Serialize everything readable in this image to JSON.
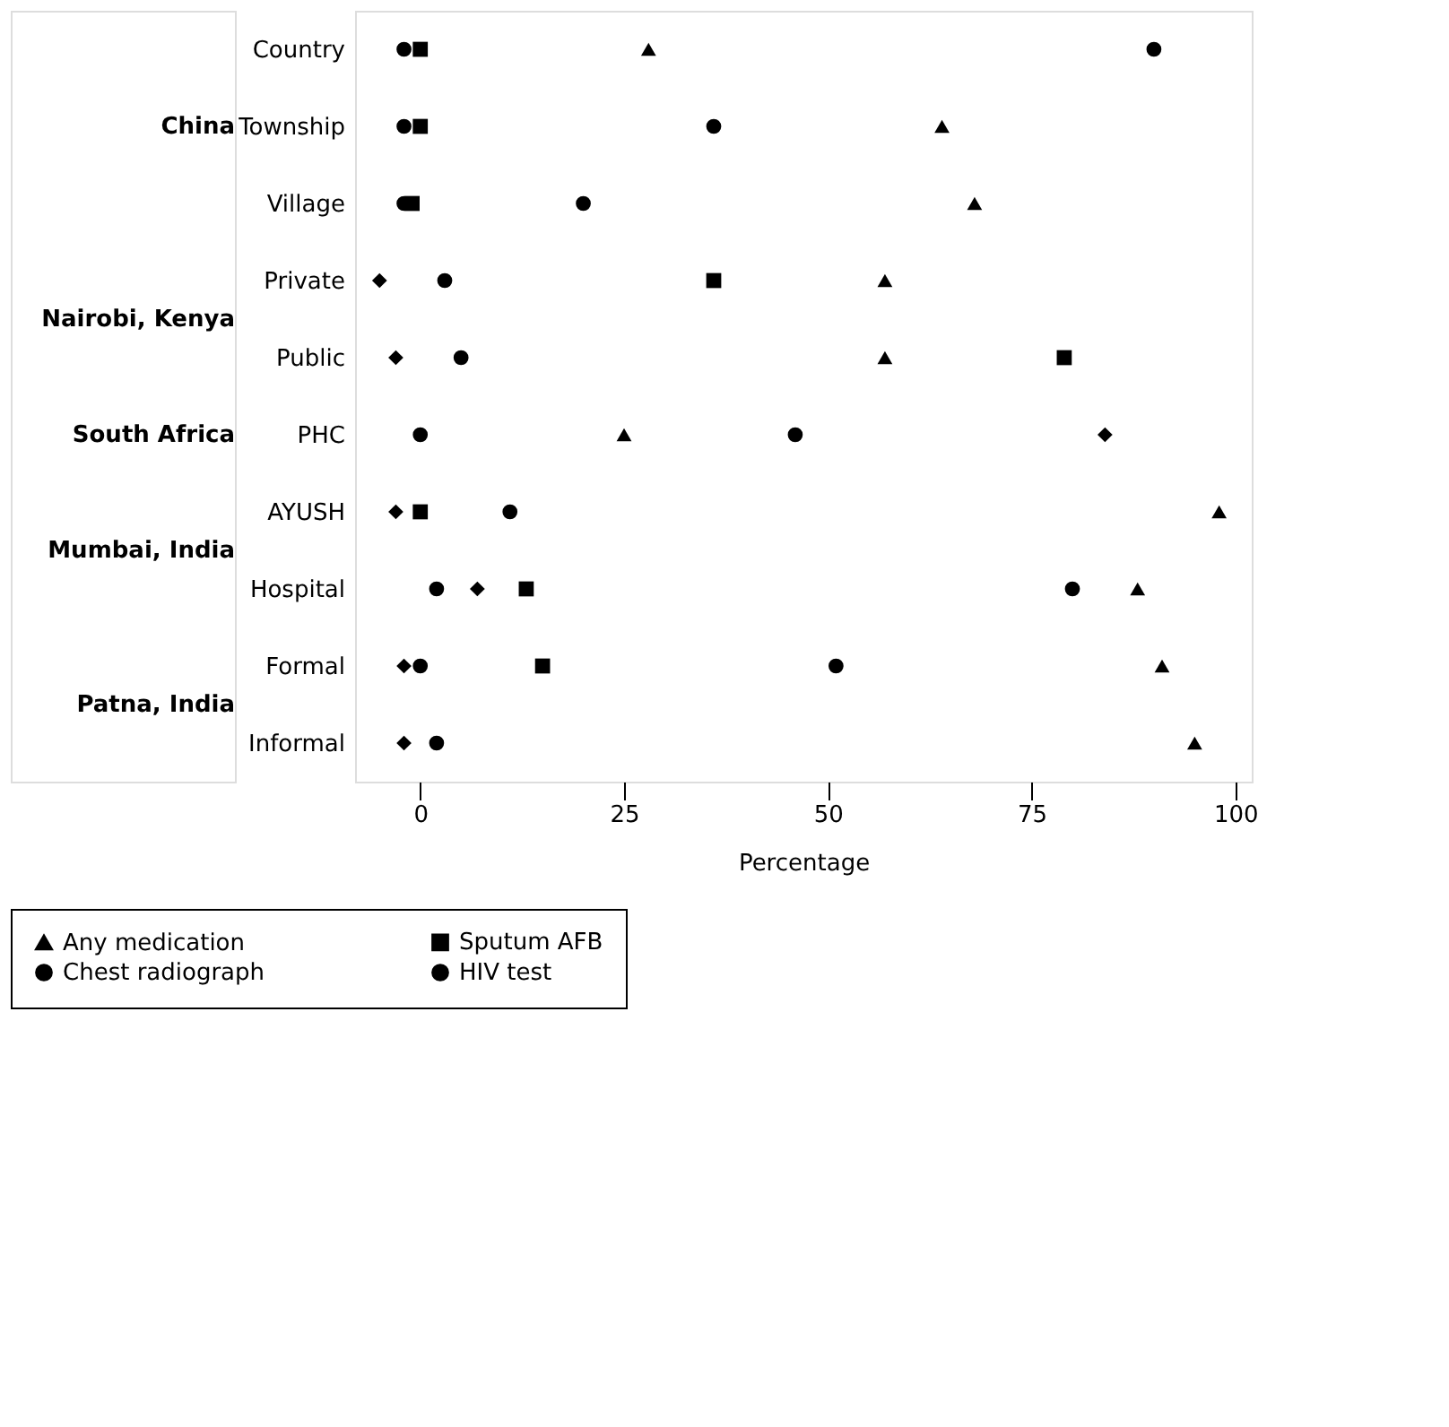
{
  "chart_data": {
    "type": "scatter",
    "xlabel": "Percentage",
    "categories": [
      "Country",
      "Township",
      "Village",
      "Private",
      "Public",
      "PHC",
      "AYUSH",
      "Hospital",
      "Formal",
      "Informal"
    ],
    "series": [
      {
        "name": "Any medication",
        "color": "#000000",
        "marker": "triangle",
        "values": [
          28,
          64,
          68,
          57,
          57,
          25,
          98,
          88,
          91,
          95
        ]
      },
      {
        "name": "Sputum AFB",
        "color": "#000000",
        "marker": "square",
        "values": [
          0,
          0,
          -1,
          36,
          79,
          null,
          0,
          13,
          15,
          null
        ]
      },
      {
        "name": "Chest radiograph",
        "color": "#000000",
        "marker": "circle",
        "values": [
          90,
          36,
          20,
          3,
          5,
          0,
          11,
          80,
          51,
          2
        ]
      },
      {
        "color": "#000000",
        "marker": "diamond",
        "values": [
          null,
          null,
          null,
          -5,
          -3,
          84,
          -3,
          7,
          -2,
          -2
        ]
      },
      {
        "name": "HIV test",
        "color": "#000000",
        "marker": "circle",
        "values": [
          -2,
          -2,
          -2,
          null,
          null,
          46,
          null,
          2,
          0,
          null
        ]
      }
    ],
    "annotations": [
      "China",
      "Nairobi, Kenya",
      "South Africa",
      "Mumbai, India",
      "Patna, India"
    ],
    "xlim": [
      -8,
      102
    ],
    "xticks": [
      0,
      25,
      50,
      75,
      100
    ],
    "grid": false,
    "legend": "bottom",
    "orientation": "horizontal"
  }
}
